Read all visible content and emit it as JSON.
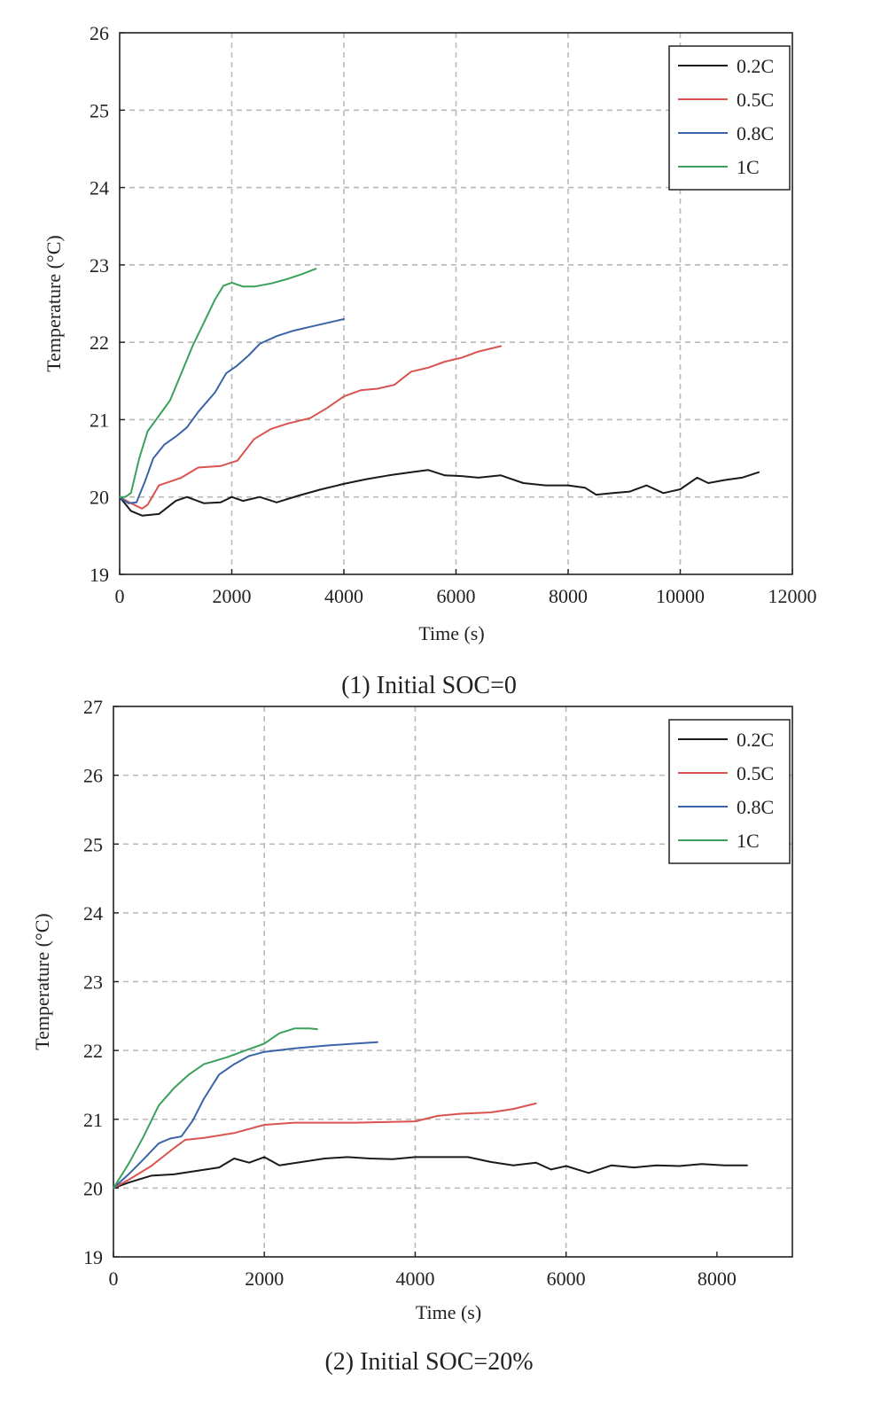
{
  "chart_data": [
    {
      "type": "line",
      "title": "(1) Initial SOC=0",
      "xlabel": "Time (s)",
      "ylabel": "Temperature (°C)",
      "xlim": [
        0,
        12000
      ],
      "ylim": [
        19,
        26
      ],
      "xticks": [
        "0",
        "2000",
        "4000",
        "6000",
        "8000",
        "10000",
        "12000"
      ],
      "yticks": [
        "19",
        "20",
        "21",
        "22",
        "23",
        "24",
        "25",
        "26"
      ],
      "grid": true,
      "legend_position": "top-right",
      "series": [
        {
          "name": "0.2C",
          "color": "#1a1a1a",
          "x": [
            0,
            200,
            400,
            700,
            1000,
            1200,
            1500,
            1800,
            2000,
            2200,
            2500,
            2800,
            3200,
            3600,
            4000,
            4400,
            4800,
            5200,
            5500,
            5800,
            6100,
            6400,
            6800,
            7200,
            7600,
            8000,
            8300,
            8500,
            8800,
            9100,
            9400,
            9700,
            10000,
            10300,
            10500,
            10800,
            11100,
            11400
          ],
          "y": [
            20.0,
            19.82,
            19.76,
            19.78,
            19.95,
            20.0,
            19.92,
            19.93,
            20.0,
            19.95,
            20.0,
            19.93,
            20.02,
            20.1,
            20.17,
            20.23,
            20.28,
            20.32,
            20.35,
            20.28,
            20.27,
            20.25,
            20.28,
            20.18,
            20.15,
            20.15,
            20.12,
            20.03,
            20.05,
            20.07,
            20.15,
            20.05,
            20.1,
            20.25,
            20.18,
            20.22,
            20.25,
            20.32
          ]
        },
        {
          "name": "0.5C",
          "color": "#d9534f",
          "x": [
            0,
            200,
            400,
            500,
            700,
            900,
            1100,
            1400,
            1800,
            2100,
            2400,
            2700,
            3000,
            3400,
            3700,
            4000,
            4300,
            4600,
            4900,
            5200,
            5500,
            5800,
            6100,
            6400,
            6800
          ],
          "y": [
            20.0,
            19.92,
            19.85,
            19.9,
            20.15,
            20.2,
            20.25,
            20.38,
            20.4,
            20.47,
            20.75,
            20.88,
            20.95,
            21.02,
            21.15,
            21.3,
            21.38,
            21.4,
            21.45,
            21.62,
            21.67,
            21.75,
            21.8,
            21.88,
            21.95
          ]
        },
        {
          "name": "0.8C",
          "color": "#3b64a8",
          "x": [
            0,
            150,
            300,
            450,
            600,
            800,
            1000,
            1200,
            1400,
            1700,
            1900,
            2100,
            2300,
            2500,
            2800,
            3100,
            3400,
            3700,
            4000
          ],
          "y": [
            20.0,
            19.92,
            19.93,
            20.2,
            20.5,
            20.68,
            20.78,
            20.9,
            21.1,
            21.35,
            21.6,
            21.7,
            21.83,
            21.98,
            22.08,
            22.15,
            22.2,
            22.25,
            22.3
          ]
        },
        {
          "name": "1C",
          "color": "#3aa15a",
          "x": [
            0,
            100,
            200,
            350,
            500,
            700,
            900,
            1100,
            1300,
            1500,
            1700,
            1850,
            2000,
            2200,
            2400,
            2700,
            3000,
            3250,
            3500
          ],
          "y": [
            20.0,
            20.0,
            20.05,
            20.5,
            20.85,
            21.05,
            21.25,
            21.6,
            21.95,
            22.25,
            22.55,
            22.73,
            22.77,
            22.72,
            22.72,
            22.76,
            22.82,
            22.88,
            22.95
          ]
        }
      ]
    },
    {
      "type": "line",
      "title": "(2) Initial SOC=20%",
      "xlabel": "Time (s)",
      "ylabel": "Temperature (°C)",
      "xlim": [
        0,
        9000
      ],
      "ylim": [
        19,
        27
      ],
      "xticks": [
        "0",
        "2000",
        "4000",
        "6000",
        "8000"
      ],
      "yticks": [
        "19",
        "20",
        "21",
        "22",
        "23",
        "24",
        "25",
        "26",
        "27"
      ],
      "grid": true,
      "legend_position": "top-right",
      "series": [
        {
          "name": "0.2C",
          "color": "#1a1a1a",
          "x": [
            0,
            200,
            500,
            800,
            1100,
            1400,
            1600,
            1800,
            2000,
            2200,
            2500,
            2800,
            3100,
            3400,
            3700,
            4000,
            4300,
            4700,
            5000,
            5300,
            5600,
            5800,
            6000,
            6300,
            6600,
            6900,
            7200,
            7500,
            7800,
            8100,
            8400
          ],
          "y": [
            20.0,
            20.08,
            20.18,
            20.2,
            20.25,
            20.3,
            20.43,
            20.37,
            20.45,
            20.33,
            20.38,
            20.43,
            20.45,
            20.43,
            20.42,
            20.45,
            20.45,
            20.45,
            20.38,
            20.33,
            20.37,
            20.27,
            20.32,
            20.22,
            20.33,
            20.3,
            20.33,
            20.32,
            20.35,
            20.33,
            20.33
          ]
        },
        {
          "name": "0.5C",
          "color": "#d9534f",
          "x": [
            0,
            200,
            500,
            800,
            950,
            1200,
            1600,
            2000,
            2400,
            2800,
            3200,
            3600,
            4000,
            4300,
            4600,
            5000,
            5300,
            5600
          ],
          "y": [
            20.0,
            20.12,
            20.32,
            20.58,
            20.7,
            20.73,
            20.8,
            20.92,
            20.95,
            20.95,
            20.95,
            20.96,
            20.97,
            21.05,
            21.08,
            21.1,
            21.15,
            21.23
          ]
        },
        {
          "name": "0.8C",
          "color": "#3b64a8",
          "x": [
            0,
            200,
            400,
            600,
            750,
            900,
            1050,
            1200,
            1400,
            1600,
            1800,
            2000,
            2400,
            2800,
            3200,
            3500
          ],
          "y": [
            20.0,
            20.2,
            20.42,
            20.65,
            20.72,
            20.75,
            20.98,
            21.3,
            21.65,
            21.8,
            21.92,
            21.98,
            22.03,
            22.07,
            22.1,
            22.12
          ]
        },
        {
          "name": "1C",
          "color": "#3aa15a",
          "x": [
            0,
            200,
            400,
            600,
            800,
            1000,
            1200,
            1500,
            1800,
            2000,
            2200,
            2400,
            2600,
            2700
          ],
          "y": [
            20.0,
            20.35,
            20.75,
            21.2,
            21.45,
            21.65,
            21.8,
            21.9,
            22.02,
            22.1,
            22.25,
            22.32,
            22.32,
            22.31
          ]
        }
      ]
    }
  ]
}
